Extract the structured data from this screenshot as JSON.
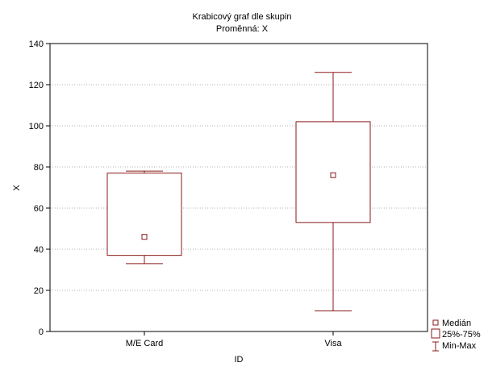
{
  "chart_data": {
    "type": "boxplot",
    "title": "Krabicový graf dle skupin",
    "subtitle": "Proměnná: X",
    "xlabel": "ID",
    "ylabel": "X",
    "ylim": [
      0,
      140
    ],
    "yticks": [
      0,
      20,
      40,
      60,
      80,
      100,
      120,
      140
    ],
    "grid": "horizontal dotted",
    "categories": [
      "M/E Card",
      "Visa"
    ],
    "boxes": [
      {
        "category": "M/E Card",
        "min": 33,
        "q1": 37,
        "median": 46,
        "q3": 77,
        "max": 78
      },
      {
        "category": "Visa",
        "min": 10,
        "q1": 53,
        "median": 76,
        "q3": 102,
        "max": 126
      }
    ],
    "legend": {
      "placement": "bottom-right",
      "items": [
        "Medián",
        "25%-75%",
        "Min-Max"
      ]
    },
    "colors": {
      "series": "#8b1a1a",
      "axis": "#000000",
      "grid": "#9a9a9a"
    }
  }
}
